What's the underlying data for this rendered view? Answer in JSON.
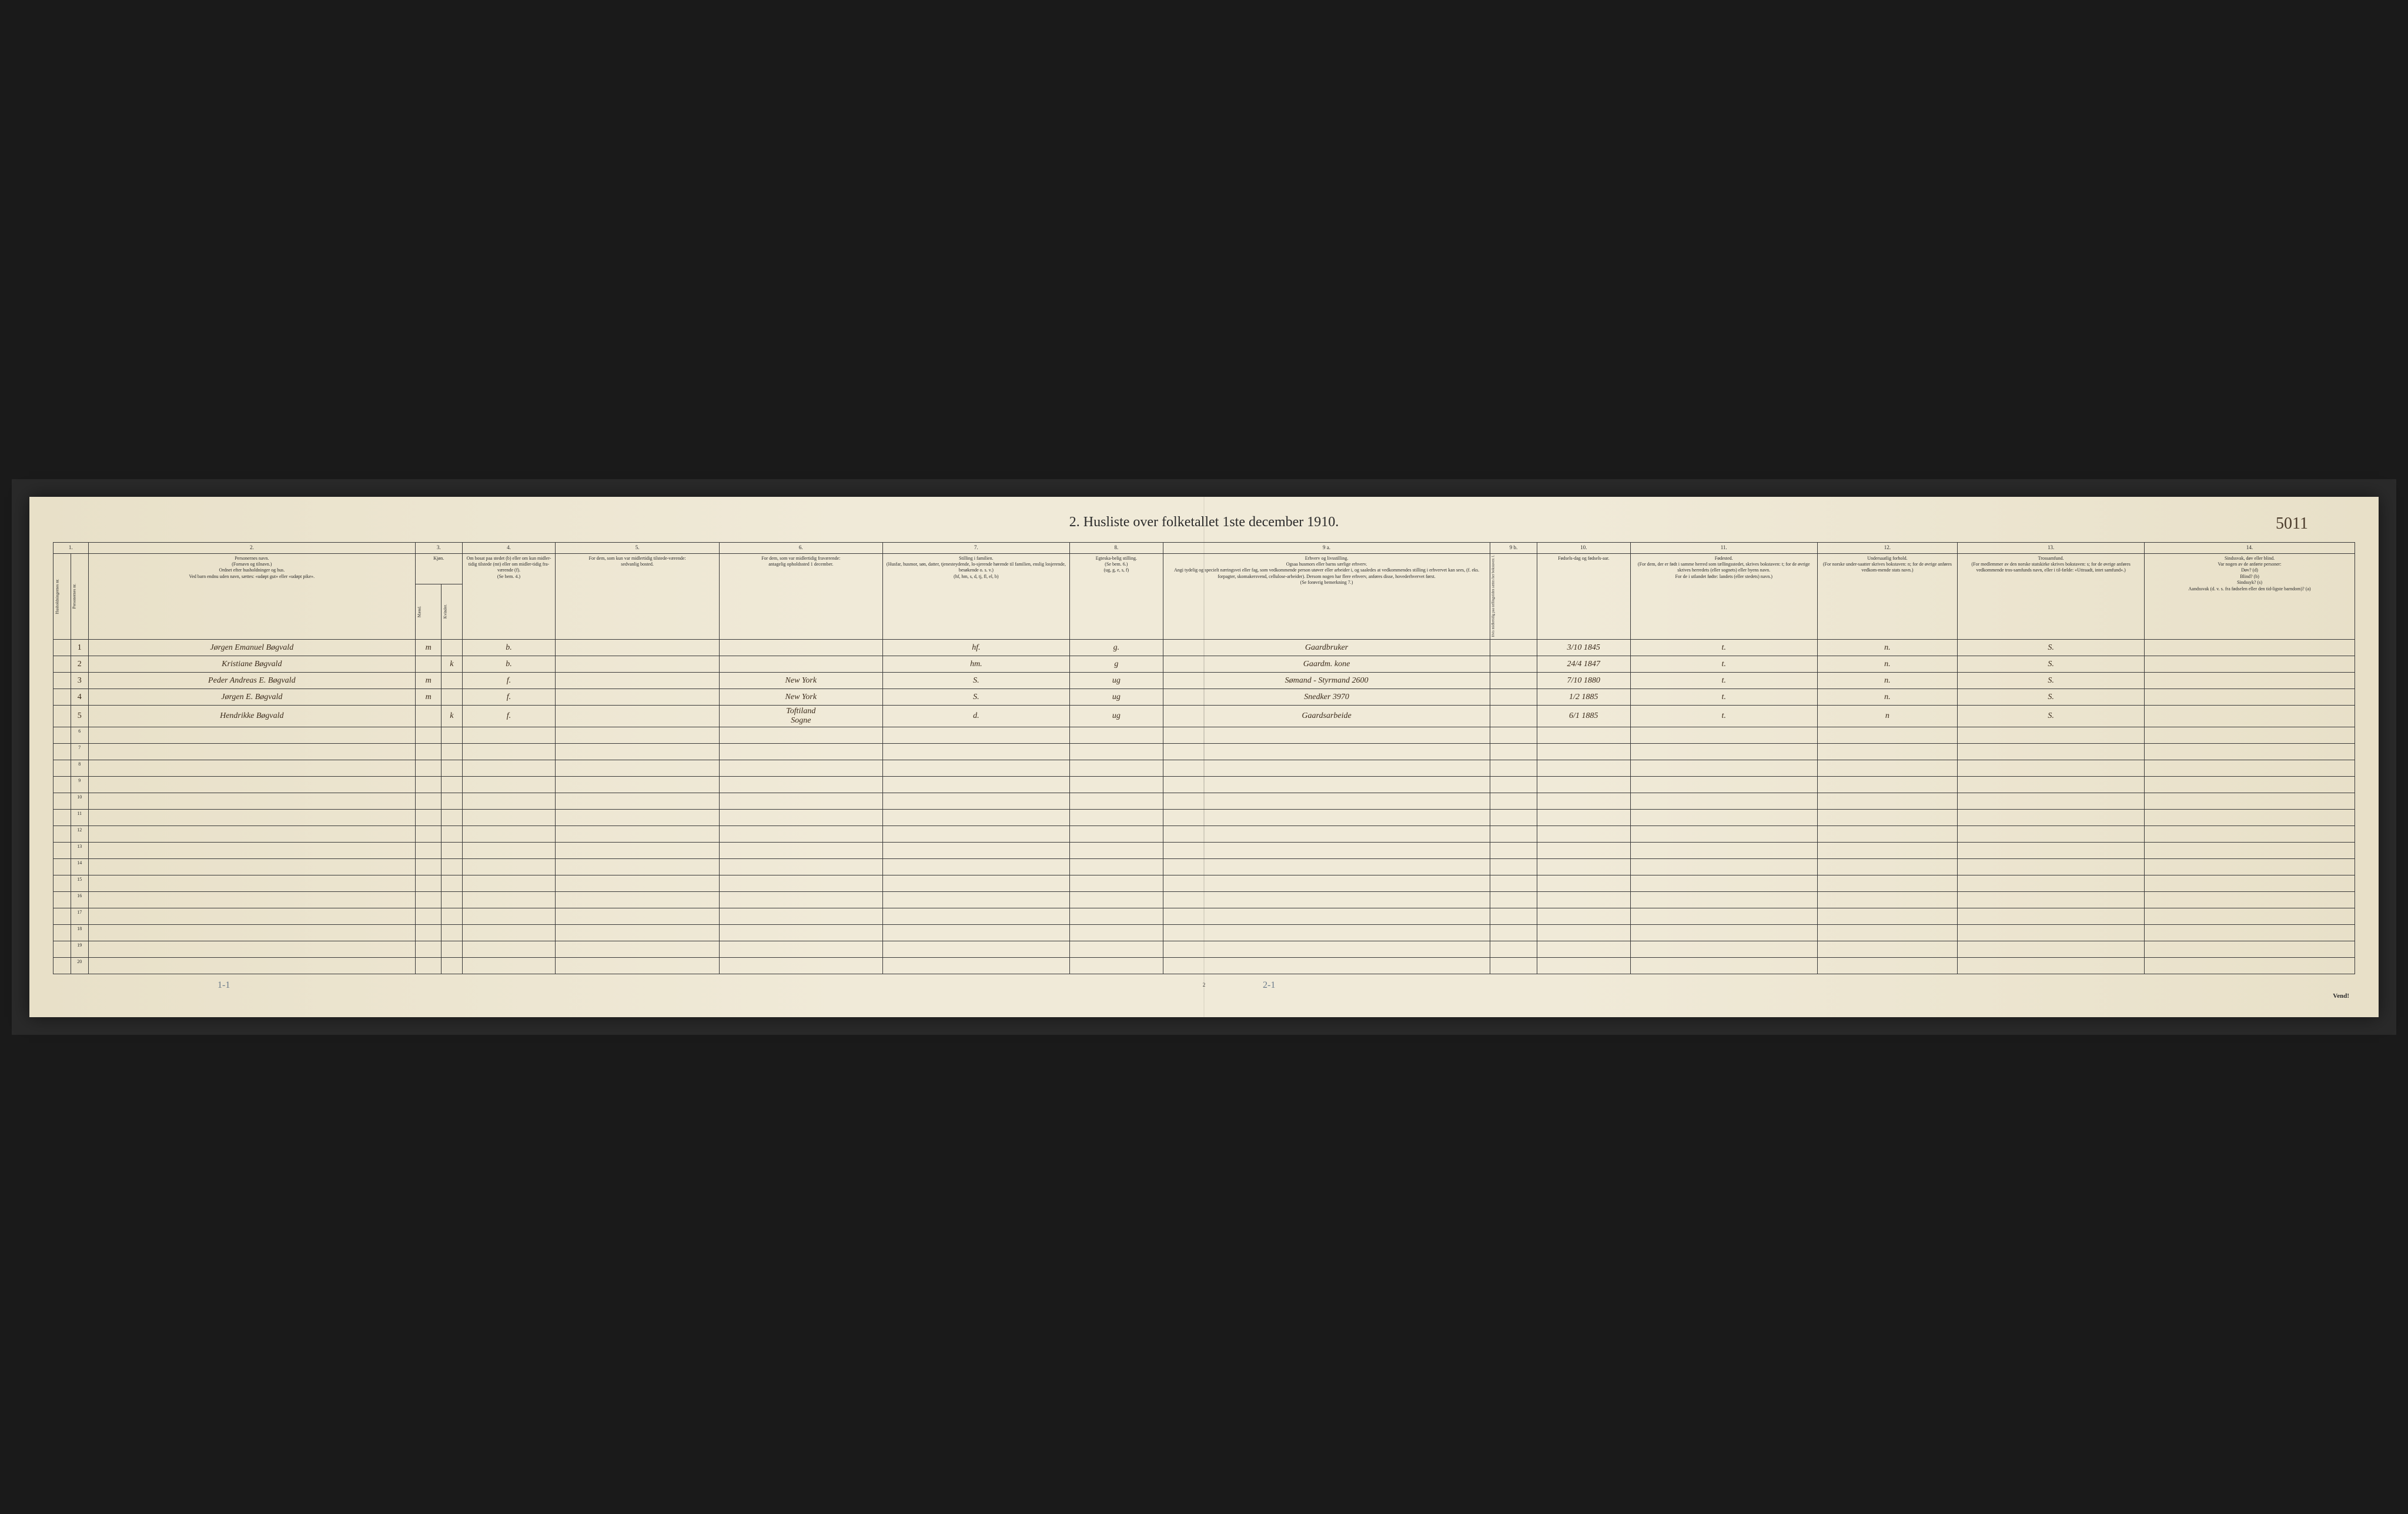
{
  "document": {
    "title": "2. Husliste over folketallet 1ste december 1910.",
    "handwritten_page_number": "5011",
    "bottom_page_number": "2",
    "vend_text": "Vend!",
    "bottom_annotation_left": "1-1",
    "bottom_annotation_right": "2-1",
    "background_color": "#f0ead8",
    "border_color": "#3a3a3a",
    "text_color": "#2a2a2a",
    "handwriting_color": "#3a2a1a"
  },
  "columns": {
    "numbers": [
      "1.",
      "2.",
      "3.",
      "4.",
      "5.",
      "6.",
      "7.",
      "8.",
      "9 a.",
      "9 b.",
      "10.",
      "11.",
      "12.",
      "13.",
      "14."
    ],
    "headers": {
      "c1": "Husholdningernes nr.",
      "c1b": "Personernes nr.",
      "c2": "Personernes navn.\n(Fornavn og tilnavn.)\nOrdnet efter husholdninger og hus.\nVed barn endnu uden navn, sættes: «udøpt gut» eller «udøpt pike».",
      "c3": "Kjøn.",
      "c3a": "Mænd.",
      "c3b": "Kvinder.",
      "c3sub": "m.   k.",
      "c4": "Om bosat paa stedet (b) eller om kun midler-tidig tilstede (mt) eller om midler-tidig fra-værende (f).\n(Se bem. 4.)",
      "c5": "For dem, som kun var midlertidig tilstede-værende:\nsedvanlig bosted.",
      "c6": "For dem, som var midlertidig fraværende:\nantagelig opholdssted 1 december.",
      "c7": "Stilling i familien.\n(Husfar, husmor, søn, datter, tjenesteydende, lo-sjerende hørende til familien, enslig losjerende, besøkende o. s. v.)\n(hf, hm, s, d, tj, fl, el, b)",
      "c8": "Egteska-belig stilling.\n(Se bem. 6.)\n(ug, g, e, s, f)",
      "c9a": "Erhverv og livsstilling.\nOgsaa husmors eller barns særlige erhverv.\nAngi tydelig og specielt næringsvei eller fag, som vedkommende person utøver eller arbeider i, og saaledes at vedkommendes stilling i erhvervet kan sees, (f. eks. forpagter, skomakersvend, cellulose-arbeider). Dersom nogen har flere erhverv, anføres disse, hovederhvervet først.\n(Se forøvrig bemerkning 7.)",
      "c9b": "Hvis midlertidig paa tællingstiden sættes her bokstaven: l.",
      "c10": "Fødsels-dag og fødsels-aar.",
      "c11": "Fødested.\n(For dem, der er født i samme herred som tællingsstedet, skrives bokstaven: t; for de øvrige skrives herredets (eller sognets) eller byens navn.\nFor de i utlandet fødte: landets (eller stedets) navn.)",
      "c12": "Undersaatlig forhold.\n(For norske under-saatter skrives bokstaven: n; for de øvrige anføres vedkom-mende stats navn.)",
      "c13": "Trossamfund.\n(For medlemmer av den norske statskirke skrives bokstaven: s; for de øvrige anføres vedkommende tros-samfunds navn, eller i til-fælde: «Uttraadt, intet samfund».)",
      "c14": "Sindssvak, døv eller blind.\nVar nogen av de anførte personer:\nDøv?        (d)\nBlind?       (b)\nSindssyk? (s)\nAandssvak (d. v. s. fra fødselen eller den tid-ligste barndom)? (a)"
    }
  },
  "rows": [
    {
      "num": "1",
      "name": "Jørgen Emanuel Bøgvald",
      "sex": "m",
      "residence": "b.",
      "usual_place": "",
      "away_place": "",
      "family_pos": "hf.",
      "marital": "g.",
      "occupation": "Gaardbruker",
      "birth": "3/10 1845",
      "birthplace": "t.",
      "nationality": "n.",
      "religion": "S.",
      "disability": ""
    },
    {
      "num": "2",
      "name": "Kristiane Bøgvald",
      "sex": "k",
      "residence": "b.",
      "usual_place": "",
      "away_place": "",
      "family_pos": "hm.",
      "marital": "g",
      "occupation": "Gaardm. kone",
      "birth": "24/4 1847",
      "birthplace": "t.",
      "nationality": "n.",
      "religion": "S.",
      "disability": ""
    },
    {
      "num": "3",
      "name": "Peder Andreas E. Bøgvald",
      "sex": "m",
      "residence": "f.",
      "usual_place": "",
      "away_place": "New York",
      "family_pos": "S.",
      "marital": "ug",
      "occupation": "Sømand - Styrmand  2600",
      "birth": "7/10 1880",
      "birthplace": "t.",
      "nationality": "n.",
      "religion": "S.",
      "disability": ""
    },
    {
      "num": "4",
      "name": "Jørgen E. Bøgvald",
      "sex": "m",
      "residence": "f.",
      "usual_place": "",
      "away_place": "New York",
      "family_pos": "S.",
      "marital": "ug",
      "occupation": "Snedker  3970",
      "birth": "1/2 1885",
      "birthplace": "t.",
      "nationality": "n.",
      "religion": "S.",
      "disability": ""
    },
    {
      "num": "5",
      "name": "Hendrikke Bøgvald",
      "sex": "k",
      "residence": "f.",
      "usual_place": "",
      "away_place": "Toftiland\nSogne",
      "family_pos": "d.",
      "marital": "ug",
      "occupation": "Gaardsarbeide",
      "birth": "6/1 1885",
      "birthplace": "t.",
      "nationality": "n",
      "religion": "S.",
      "disability": ""
    }
  ],
  "empty_rows": [
    "6",
    "7",
    "8",
    "9",
    "10",
    "11",
    "12",
    "13",
    "14",
    "15",
    "16",
    "17",
    "18",
    "19",
    "20"
  ]
}
